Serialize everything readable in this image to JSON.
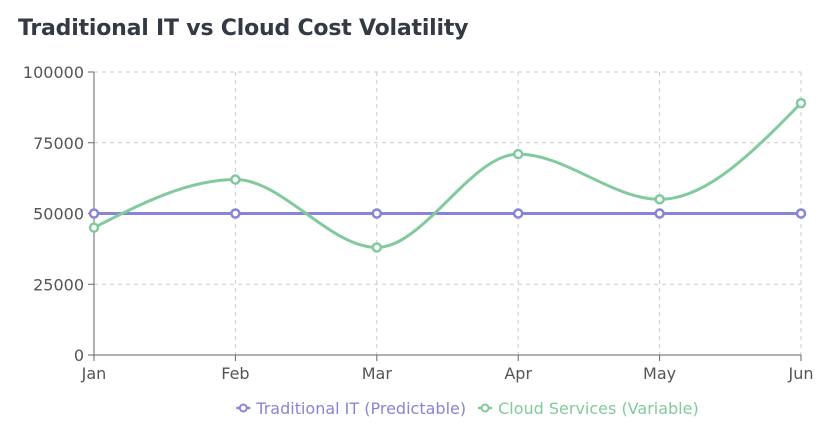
{
  "chart_data": {
    "type": "line",
    "title": "Traditional IT vs Cloud Cost Volatility",
    "categories": [
      "Jan",
      "Feb",
      "Mar",
      "Apr",
      "May",
      "Jun"
    ],
    "y_ticks": [
      "0",
      "25000",
      "50000",
      "75000",
      "100000"
    ],
    "ylim": [
      0,
      100000
    ],
    "grid": true,
    "legend_position": "bottom",
    "series": [
      {
        "name": "Traditional IT (Predictable)",
        "color": "#8884d8",
        "values": [
          50000,
          50000,
          50000,
          50000,
          50000,
          50000
        ]
      },
      {
        "name": "Cloud Services (Variable)",
        "color": "#82ca9d",
        "values": [
          45000,
          62000,
          38000,
          71000,
          55000,
          89000
        ]
      }
    ]
  }
}
